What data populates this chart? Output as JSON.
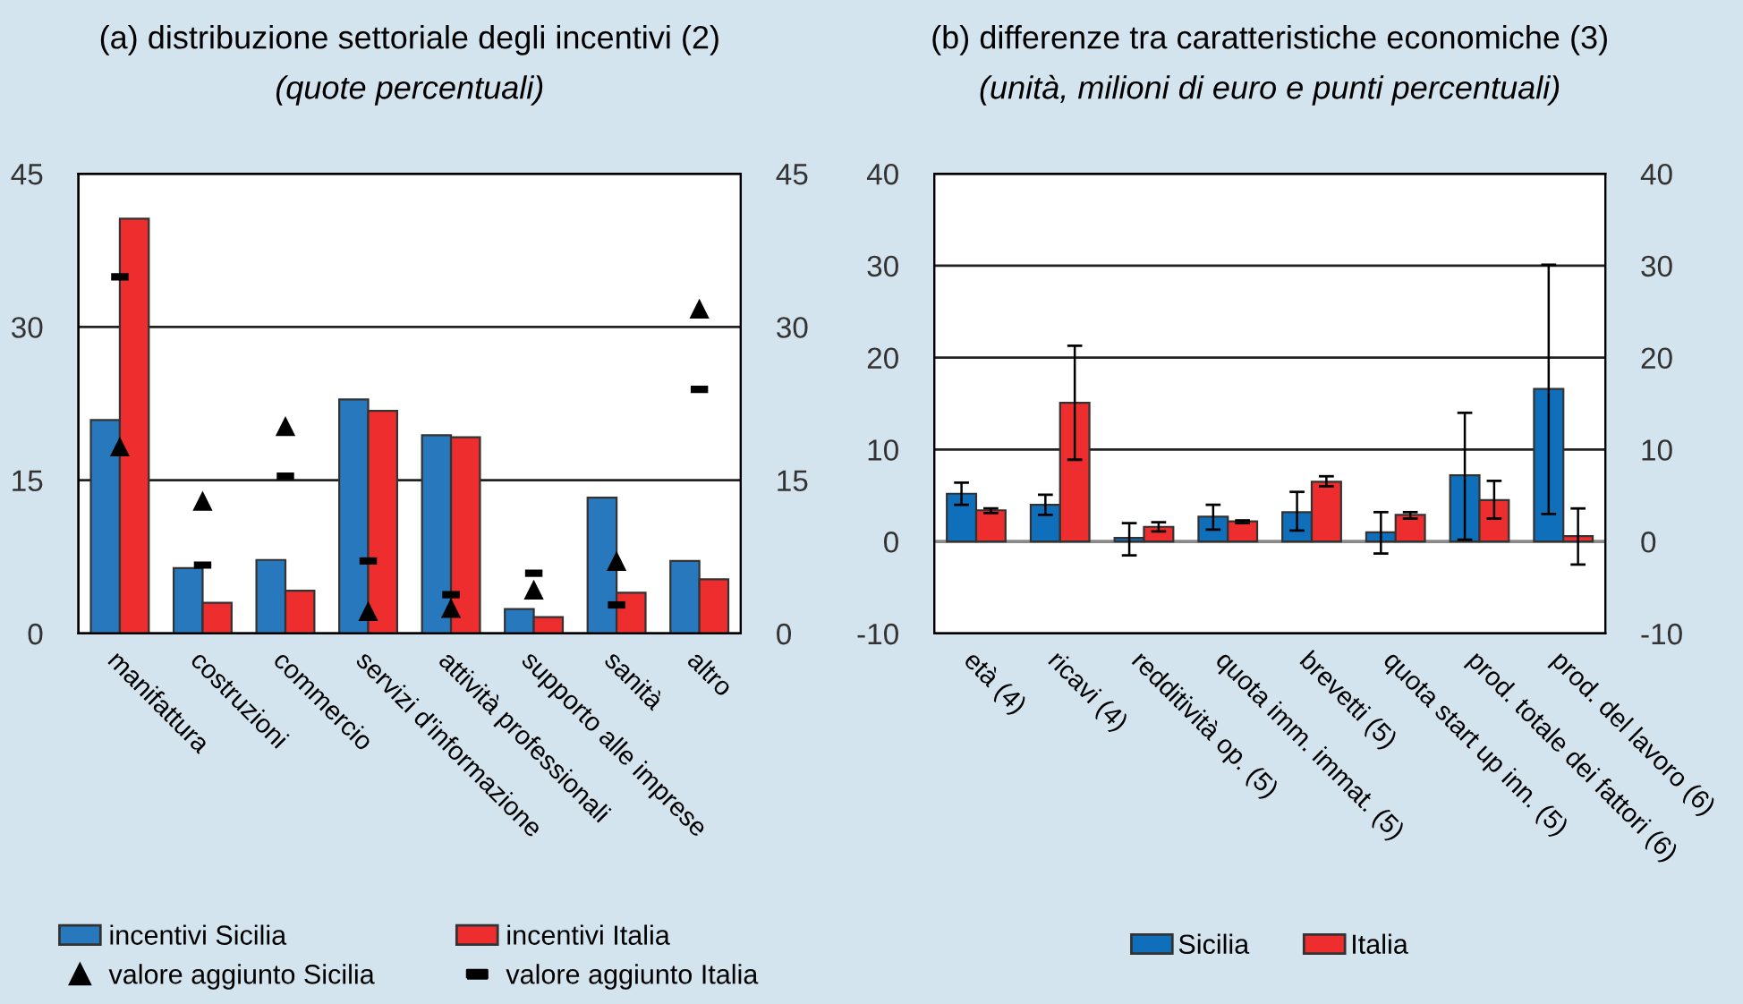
{
  "chart_data": [
    {
      "type": "bar",
      "title": "(a) distribuzione settoriale degli incentivi (2)",
      "subtitle": "(quote percentuali)",
      "categories": [
        "manifattura",
        "costruzioni",
        "commercio",
        "servizi d'informazione",
        "attività professionali",
        "supporto alle imprese",
        "sanità",
        "altro"
      ],
      "series": [
        {
          "name": "incentivi Sicilia",
          "color": "#2878bd",
          "values": [
            20.9,
            6.4,
            7.2,
            22.9,
            19.4,
            2.4,
            13.3,
            7.1
          ]
        },
        {
          "name": "incentivi Italia",
          "color": "#ee2e2e",
          "values": [
            40.6,
            3.0,
            4.2,
            21.8,
            19.2,
            1.6,
            4.0,
            5.3
          ]
        },
        {
          "name": "valore aggiunto Sicilia",
          "type": "scatter",
          "marker": "triangle",
          "color": "#000000",
          "values": [
            18.3,
            13.0,
            20.3,
            2.2,
            2.5,
            4.3,
            7.1,
            31.8
          ]
        },
        {
          "name": "valore aggiunto Italia",
          "type": "scatter",
          "marker": "square",
          "color": "#000000",
          "values": [
            34.9,
            6.7,
            15.4,
            7.1,
            3.8,
            5.9,
            2.8,
            23.9
          ]
        }
      ],
      "ylim": [
        0,
        45
      ],
      "yticks": [
        0,
        15,
        30,
        45
      ],
      "y2lim": [
        0,
        45
      ],
      "y2ticks": [
        0,
        15,
        30,
        45
      ],
      "grid": "y",
      "legend": "bottom"
    },
    {
      "type": "bar",
      "title": "(b) differenze tra caratteristiche economiche (3)",
      "subtitle": "(unità, milioni di euro e punti percentuali)",
      "categories": [
        "età (4)",
        "ricavi (4)",
        "redditività op. (5)",
        "quota imm. immat. (5)",
        "brevetti (5)",
        "quota start up inn. (5)",
        "prod. totale dei fattori (6)",
        "prod. del lavoro (6)"
      ],
      "series": [
        {
          "name": "Sicilia",
          "color": "#0f6fba",
          "values": [
            5.2,
            4.0,
            0.4,
            2.7,
            3.2,
            1.0,
            7.2,
            16.6
          ],
          "errors": [
            [
              4.0,
              6.4
            ],
            [
              2.9,
              5.1
            ],
            [
              -1.5,
              2.0
            ],
            [
              1.3,
              4.0
            ],
            [
              1.2,
              5.4
            ],
            [
              -1.3,
              3.2
            ],
            [
              0.2,
              14.0
            ],
            [
              3.0,
              30.1
            ]
          ]
        },
        {
          "name": "Italia",
          "color": "#ee2e2e",
          "values": [
            3.4,
            15.1,
            1.6,
            2.2,
            6.5,
            2.9,
            4.5,
            0.6
          ],
          "errors": [
            [
              3.1,
              3.6
            ],
            [
              8.9,
              21.3
            ],
            [
              1.1,
              2.1
            ],
            [
              2.0,
              2.3
            ],
            [
              6.0,
              7.1
            ],
            [
              2.5,
              3.2
            ],
            [
              2.5,
              6.6
            ],
            [
              -2.5,
              3.6
            ]
          ]
        }
      ],
      "ylim": [
        -10,
        40
      ],
      "yticks": [
        -10,
        0,
        10,
        20,
        30,
        40
      ],
      "y2lim": [
        -10,
        40
      ],
      "y2ticks": [
        -10,
        0,
        10,
        20,
        30,
        40
      ],
      "grid": "y",
      "legend": "bottom"
    }
  ]
}
